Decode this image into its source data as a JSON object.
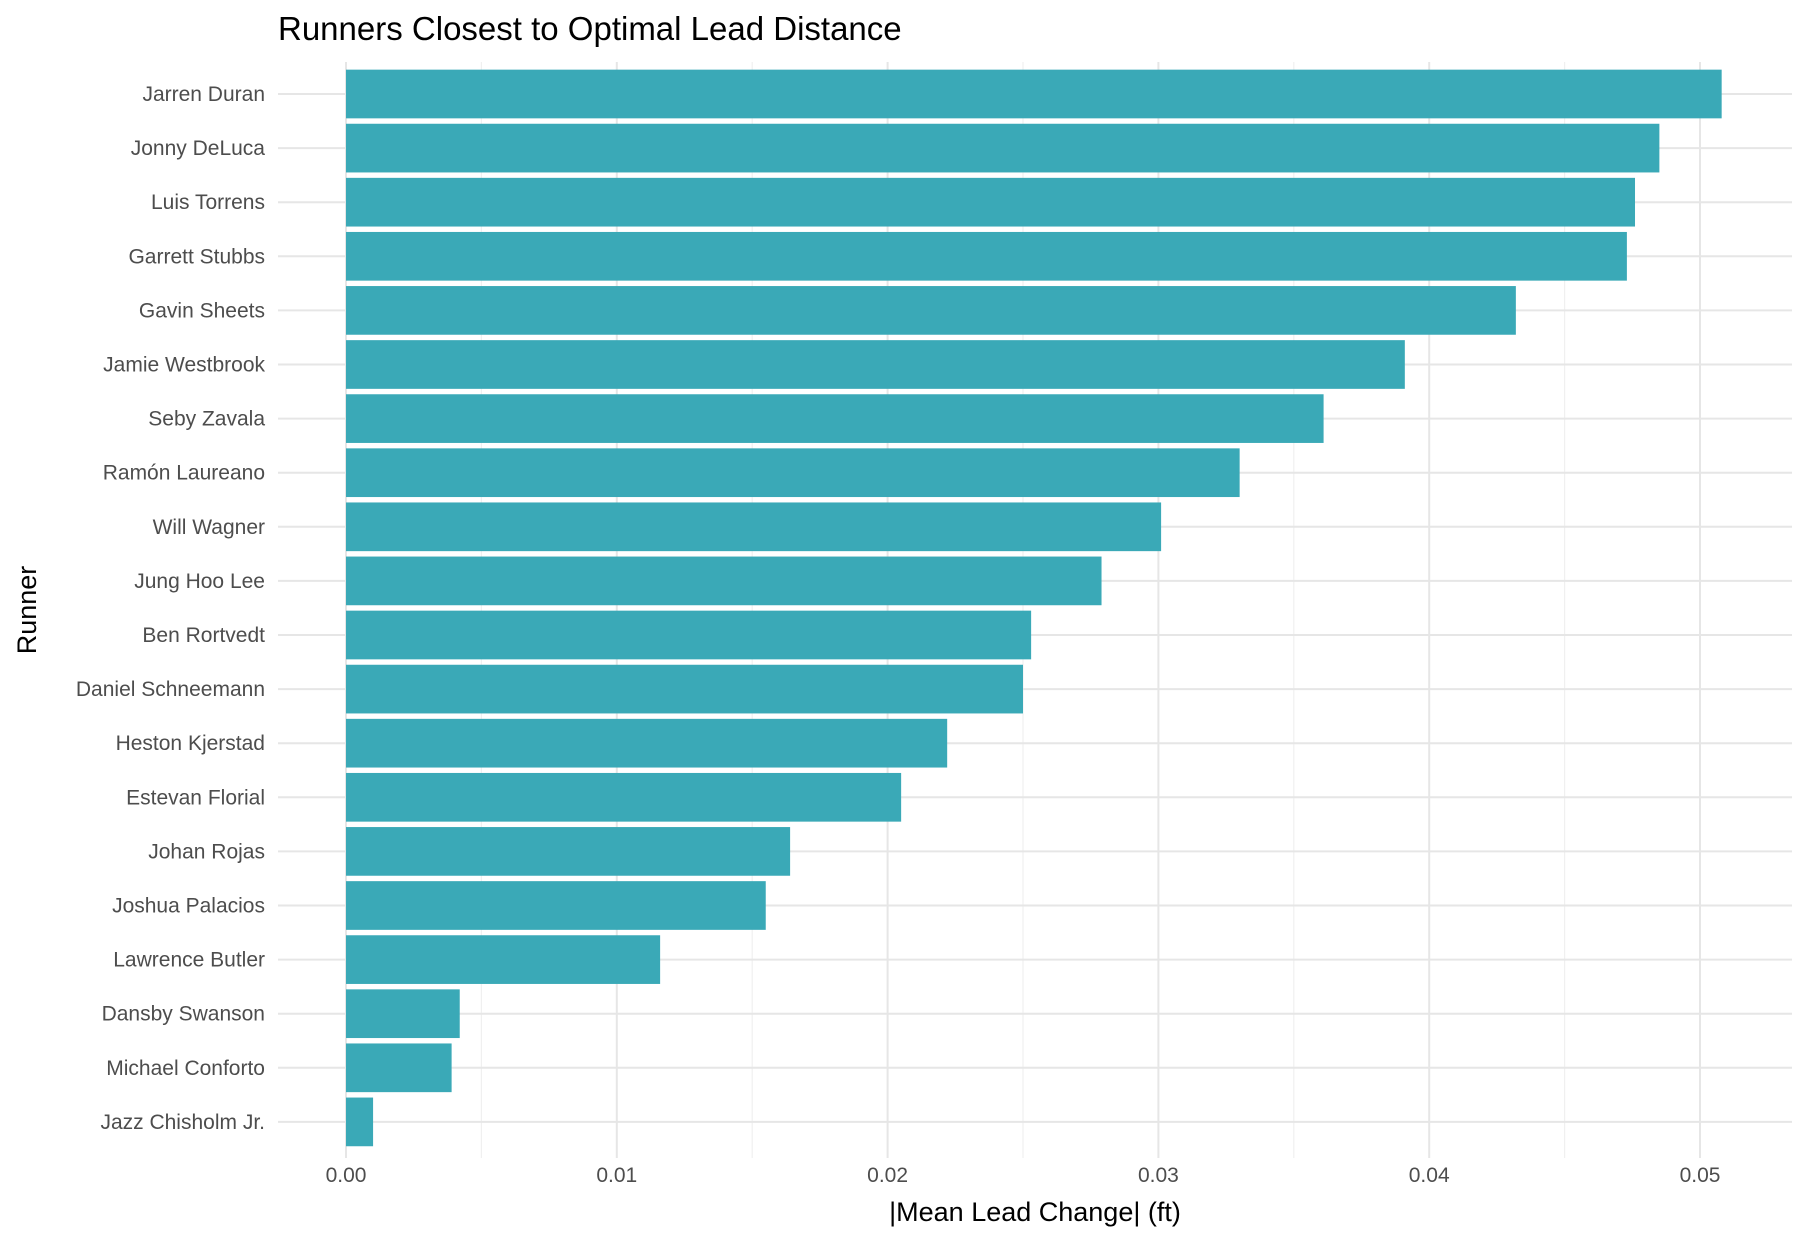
{
  "chart_data": {
    "type": "bar",
    "orientation": "horizontal",
    "title": "Runners Closest to Optimal Lead Distance",
    "xlabel": "|Mean Lead Change| (ft)",
    "ylabel": "Runner",
    "xlim": [
      -0.0025,
      0.0535
    ],
    "x_ticks": [
      "0.00",
      "0.01",
      "0.02",
      "0.03",
      "0.04",
      "0.05"
    ],
    "x_tick_values": [
      0,
      0.01,
      0.02,
      0.03,
      0.04,
      0.05
    ],
    "grid": true,
    "bar_color": "#3aa9b7",
    "categories": [
      "Jarren Duran",
      "Jonny DeLuca",
      "Luis Torrens",
      "Garrett Stubbs",
      "Gavin Sheets",
      "Jamie Westbrook",
      "Seby Zavala",
      "Ramón Laureano",
      "Will Wagner",
      "Jung Hoo Lee",
      "Ben Rortvedt",
      "Daniel Schneemann",
      "Heston Kjerstad",
      "Estevan Florial",
      "Johan Rojas",
      "Joshua Palacios",
      "Lawrence Butler",
      "Dansby Swanson",
      "Michael Conforto",
      "Jazz Chisholm Jr."
    ],
    "values": [
      0.0508,
      0.0485,
      0.0476,
      0.0473,
      0.0432,
      0.0391,
      0.0361,
      0.033,
      0.0301,
      0.0279,
      0.0253,
      0.025,
      0.0222,
      0.0205,
      0.0164,
      0.0155,
      0.0116,
      0.0042,
      0.0039,
      0.001
    ]
  }
}
